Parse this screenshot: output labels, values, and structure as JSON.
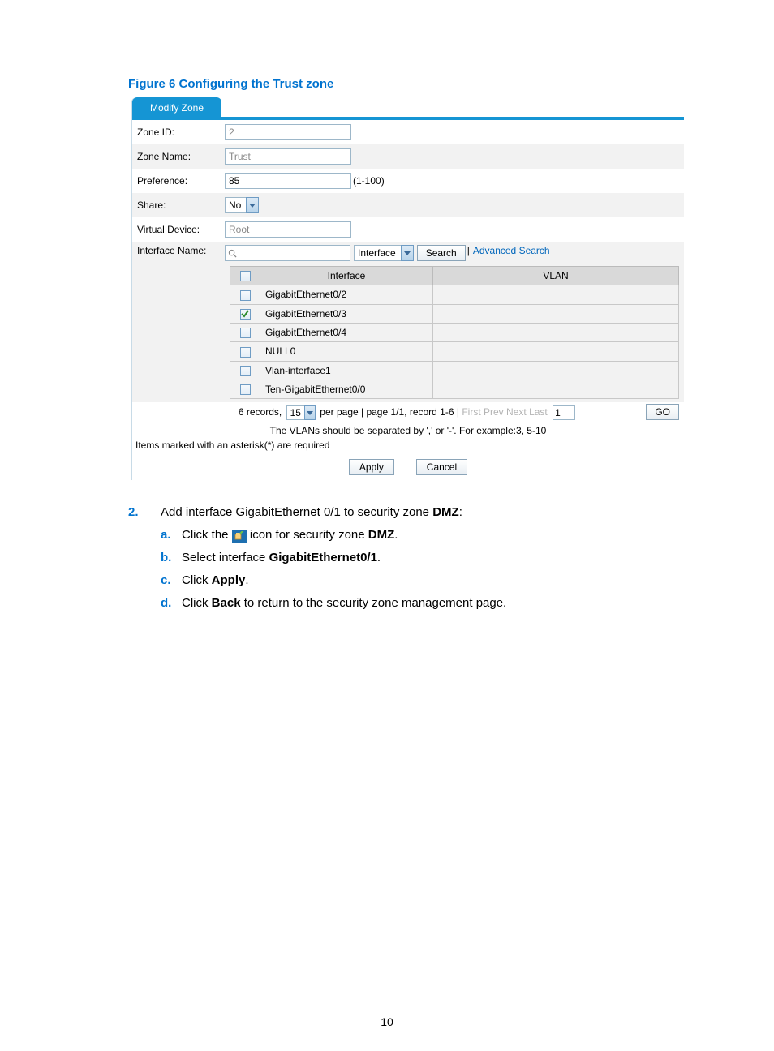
{
  "caption": "Figure 6 Configuring the Trust zone",
  "tab_label": "Modify Zone",
  "form": {
    "zone_id": {
      "label": "Zone ID:",
      "value": "2",
      "enabled": false
    },
    "zone_name": {
      "label": "Zone Name:",
      "value": "Trust",
      "enabled": false
    },
    "preference": {
      "label": "Preference:",
      "value": "85",
      "enabled": true,
      "hint": "(1-100)"
    },
    "share": {
      "label": "Share:",
      "value": "No"
    },
    "virtual_device": {
      "label": "Virtual Device:",
      "value": "Root",
      "enabled": false
    },
    "interface_name": {
      "label": "Interface Name:",
      "search_value": "",
      "type_select": "Interface",
      "search_btn": "Search",
      "advanced": "Advanced Search"
    }
  },
  "table": {
    "col_interface": "Interface",
    "col_vlan": "VLAN",
    "rows": [
      {
        "checked": false,
        "iface": "GigabitEthernet0/2",
        "vlan": ""
      },
      {
        "checked": true,
        "iface": "GigabitEthernet0/3",
        "vlan": ""
      },
      {
        "checked": false,
        "iface": "GigabitEthernet0/4",
        "vlan": ""
      },
      {
        "checked": false,
        "iface": "NULL0",
        "vlan": ""
      },
      {
        "checked": false,
        "iface": "Vlan-interface1",
        "vlan": ""
      },
      {
        "checked": false,
        "iface": "Ten-GigabitEthernet0/0",
        "vlan": ""
      }
    ]
  },
  "pager": {
    "records_prefix": "6 records,",
    "per_page_value": "15",
    "mid": "per page | page 1/1, record 1-6 |",
    "first": "First",
    "prev": "Prev",
    "next": "Next",
    "last": "Last",
    "page_value": "1",
    "go": "GO"
  },
  "vlan_note": "The VLANs should be separated by ',' or '-'. For example:3, 5-10",
  "required_note": "Items marked with an asterisk(*) are required",
  "apply_btn": "Apply",
  "cancel_btn": "Cancel",
  "instructions": {
    "step_num": "2.",
    "step_text_pre": "Add interface GigabitEthernet 0/1 to security zone ",
    "step_text_bold": "DMZ",
    "step_text_post": ":",
    "a_letter": "a.",
    "a_pre": "Click the ",
    "a_post": " icon for security zone ",
    "a_bold": "DMZ",
    "a_end": ".",
    "b_letter": "b.",
    "b_pre": "Select interface ",
    "b_bold": "GigabitEthernet0/1",
    "b_end": ".",
    "c_letter": "c.",
    "c_pre": "Click ",
    "c_bold": "Apply",
    "c_end": ".",
    "d_letter": "d.",
    "d_pre": "Click ",
    "d_bold": "Back",
    "d_post": " to return to the security zone management page."
  },
  "page_number": "10",
  "colors": {
    "accent": "#0073cf",
    "tab_bg": "#1595d4"
  }
}
